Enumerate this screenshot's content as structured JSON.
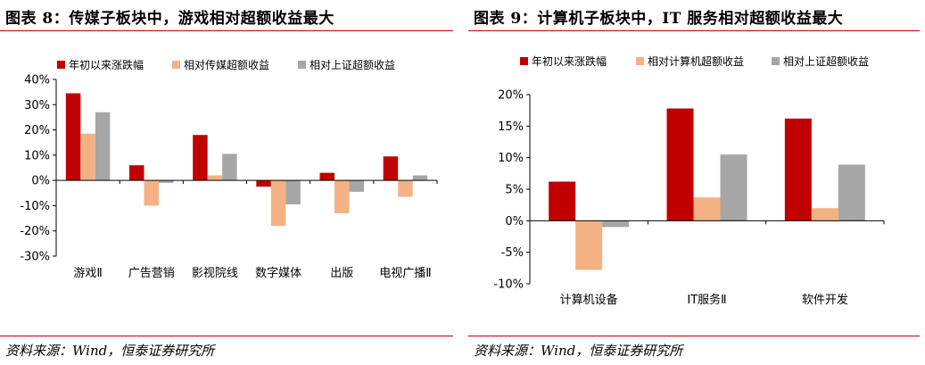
{
  "left": {
    "title": "图表 8：传媒子板块中，游戏相对超额收益最大",
    "source": "资料来源：Wind，恒泰证券研究所"
  },
  "right": {
    "title": "图表 9：计算机子板块中，IT 服务相对超额收益最大",
    "source": "资料来源：Wind，恒泰证券研究所"
  },
  "colors": {
    "accent_rule": "#c00000",
    "series1": "#c00000",
    "series2": "#f4b183",
    "series3": "#a6a6a6"
  },
  "chart_data": [
    {
      "type": "bar",
      "title": "",
      "xlabel": "",
      "ylabel": "",
      "categories": [
        "游戏Ⅱ",
        "广告营销",
        "影视院线",
        "数字媒体",
        "出版",
        "电视广播Ⅱ"
      ],
      "series": [
        {
          "name": "年初以来涨跌幅",
          "values": [
            34.5,
            6,
            18,
            -2.5,
            3,
            9.5
          ]
        },
        {
          "name": "相对传媒超额收益",
          "values": [
            18.5,
            -10,
            2,
            -18,
            -13,
            -6.5
          ]
        },
        {
          "name": "相对上证超额收益",
          "values": [
            27,
            -1,
            10.5,
            -9.5,
            -4.5,
            2
          ]
        }
      ],
      "ylim": [
        -30,
        40
      ],
      "yticks": [
        "40%",
        "30%",
        "20%",
        "10%",
        "0%",
        "-10%",
        "-20%",
        "-30%"
      ],
      "legend_position": "top",
      "grid": false
    },
    {
      "type": "bar",
      "title": "",
      "xlabel": "",
      "ylabel": "",
      "categories": [
        "计算机设备",
        "IT服务Ⅱ",
        "软件开发"
      ],
      "series": [
        {
          "name": "年初以来涨跌幅",
          "values": [
            6.2,
            17.8,
            16.2
          ]
        },
        {
          "name": "相对计算机超额收益",
          "values": [
            -7.8,
            3.7,
            2
          ]
        },
        {
          "name": "相对上证超额收益",
          "values": [
            -1,
            10.5,
            8.9
          ]
        }
      ],
      "ylim": [
        -10,
        20
      ],
      "yticks": [
        "20%",
        "15%",
        "10%",
        "5%",
        "0%",
        "-5%",
        "-10%"
      ],
      "legend_position": "top",
      "grid": false
    }
  ]
}
